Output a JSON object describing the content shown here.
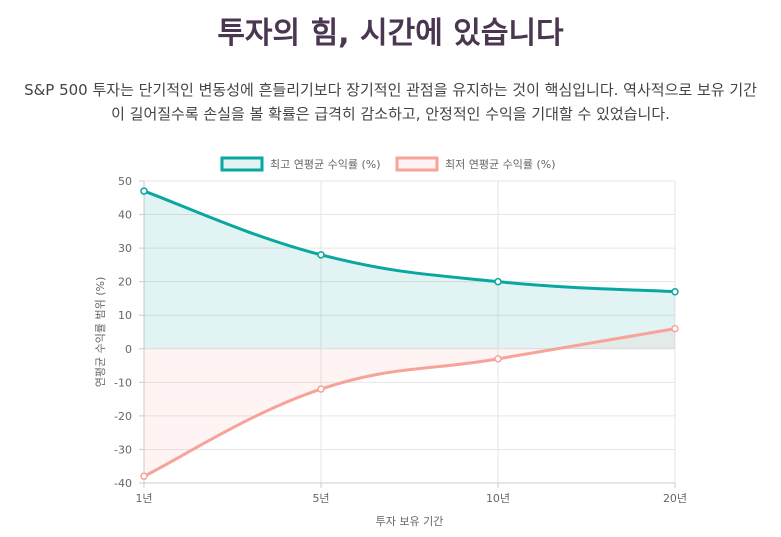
{
  "header": {
    "title": "투자의 힘, 시간에 있습니다",
    "description_line1": "S&P 500 투자는 단기적인 변동성에 흔들리기보다 장기적인 관점을 유지하는 것이 핵심입니다. 역사적으로 보유 기간",
    "description_line2": "이 길어질수록 손실을 볼 확률은 급격히 감소하고, 안정적인 수익을 기대할 수 있었습니다."
  },
  "chart_data": {
    "type": "area",
    "categories": [
      "1년",
      "5년",
      "10년",
      "20년"
    ],
    "series": [
      {
        "name": "최고 연평균 수익률 (%)",
        "values": [
          47,
          28,
          20,
          17
        ],
        "color": "#0aa6a0",
        "fill": "rgba(10,166,160,0.12)"
      },
      {
        "name": "최저 연평균 수익률 (%)",
        "values": [
          -38,
          -12,
          -3,
          6
        ],
        "color": "#f7a39a",
        "fill": "rgba(247,163,154,0.12)"
      }
    ],
    "xlabel": "투자 보유 기간",
    "ylabel": "연평균 수익률 범위 (%)",
    "ylim": [
      -40,
      50
    ],
    "yticks": [
      50,
      40,
      30,
      20,
      10,
      0,
      -10,
      -20,
      -30,
      -40
    ],
    "grid": true,
    "legend_position": "top-center"
  }
}
